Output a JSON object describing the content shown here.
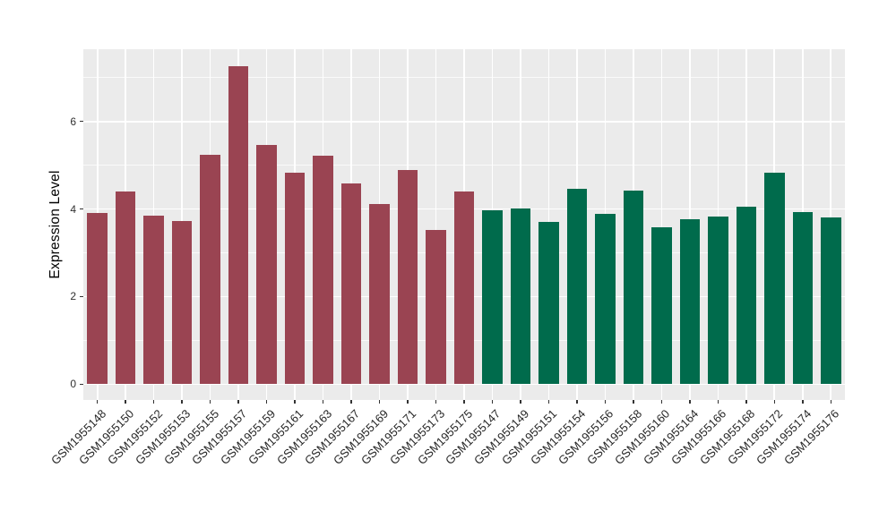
{
  "figure": {
    "ylabel": "Expression Level",
    "panel_background": "#EBEBEB",
    "grid_color": "#FFFFFF",
    "tick_color": "#333333",
    "axis_text_color": "#262626",
    "group_colors": {
      "group1": "#9A4452",
      "group2": "#006B4C"
    }
  },
  "chart_data": {
    "type": "bar",
    "title": "",
    "xlabel": "",
    "ylabel": "Expression Level",
    "ylim": [
      0,
      7.65
    ],
    "yticks": [
      0,
      2,
      4,
      6
    ],
    "yticks_minor": [
      1,
      3,
      5,
      7
    ],
    "grid": true,
    "legend_position": "none",
    "x_label_angle": 45,
    "categories": [
      "GSM1955148",
      "GSM1955150",
      "GSM1955152",
      "GSM1955153",
      "GSM1955155",
      "GSM1955157",
      "GSM1955159",
      "GSM1955161",
      "GSM1955163",
      "GSM1955167",
      "GSM1955169",
      "GSM1955171",
      "GSM1955173",
      "GSM1955175",
      "GSM1955147",
      "GSM1955149",
      "GSM1955151",
      "GSM1955154",
      "GSM1955156",
      "GSM1955158",
      "GSM1955160",
      "GSM1955164",
      "GSM1955166",
      "GSM1955168",
      "GSM1955172",
      "GSM1955174",
      "GSM1955176"
    ],
    "values": [
      3.9,
      4.4,
      3.85,
      3.73,
      5.24,
      7.27,
      5.46,
      4.82,
      5.22,
      4.58,
      4.12,
      4.89,
      3.52,
      4.4,
      3.97,
      4.01,
      3.71,
      4.47,
      3.89,
      4.43,
      3.58,
      3.77,
      3.82,
      4.05,
      4.82,
      3.92,
      3.8
    ],
    "bar_groups": [
      "group1",
      "group1",
      "group1",
      "group1",
      "group1",
      "group1",
      "group1",
      "group1",
      "group1",
      "group1",
      "group1",
      "group1",
      "group1",
      "group1",
      "group2",
      "group2",
      "group2",
      "group2",
      "group2",
      "group2",
      "group2",
      "group2",
      "group2",
      "group2",
      "group2",
      "group2",
      "group2"
    ],
    "series": [
      {
        "name": "group1",
        "color": "#9A4452",
        "categories": [
          "GSM1955148",
          "GSM1955150",
          "GSM1955152",
          "GSM1955153",
          "GSM1955155",
          "GSM1955157",
          "GSM1955159",
          "GSM1955161",
          "GSM1955163",
          "GSM1955167",
          "GSM1955169",
          "GSM1955171",
          "GSM1955173",
          "GSM1955175"
        ],
        "values": [
          3.9,
          4.4,
          3.85,
          3.73,
          5.24,
          7.27,
          5.46,
          4.82,
          5.22,
          4.58,
          4.12,
          4.89,
          3.52,
          4.4
        ]
      },
      {
        "name": "group2",
        "color": "#006B4C",
        "categories": [
          "GSM1955147",
          "GSM1955149",
          "GSM1955151",
          "GSM1955154",
          "GSM1955156",
          "GSM1955158",
          "GSM1955160",
          "GSM1955164",
          "GSM1955166",
          "GSM1955168",
          "GSM1955172",
          "GSM1955174",
          "GSM1955176"
        ],
        "values": [
          3.97,
          4.01,
          3.71,
          4.47,
          3.89,
          4.43,
          3.58,
          3.77,
          3.82,
          4.05,
          4.82,
          3.92,
          3.8
        ]
      }
    ]
  }
}
